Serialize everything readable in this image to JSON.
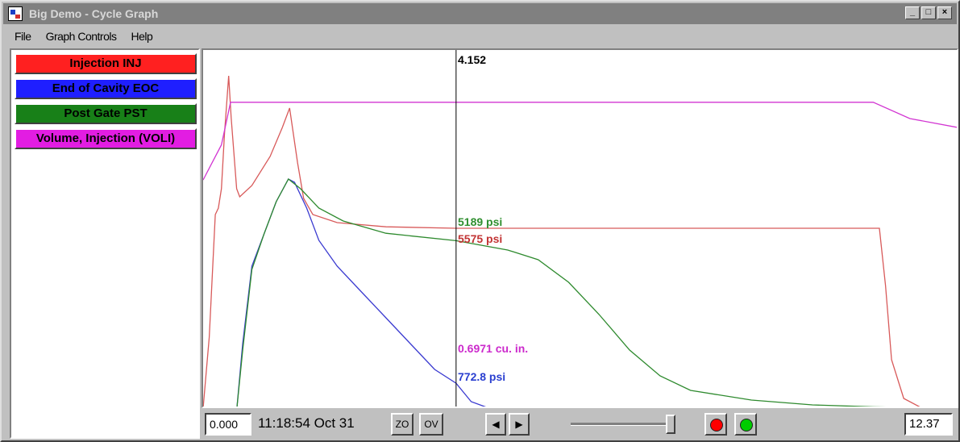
{
  "window": {
    "title": "Big Demo - Cycle Graph",
    "minimize_glyph": "_",
    "maximize_glyph": "□",
    "close_glyph": "×"
  },
  "menu": [
    {
      "label": "File"
    },
    {
      "label": "Graph Controls"
    },
    {
      "label": "Help"
    }
  ],
  "legend": [
    {
      "label": "Injection INJ",
      "color": "#ff2020"
    },
    {
      "label": "End of Cavity EOC",
      "color": "#1f1fff"
    },
    {
      "label": "Post Gate PST",
      "color": "#188018"
    },
    {
      "label": "Volume, Injection (VOLI)",
      "color": "#e21de2"
    }
  ],
  "graph": {
    "cursor_value": "4.152",
    "readouts": {
      "pst": {
        "text": "5189 psi",
        "color": "#2f8f2f"
      },
      "inj": {
        "text": "5575 psi",
        "color": "#c23434"
      },
      "voli": {
        "text": "0.6971 cu. in.",
        "color": "#cc2acc"
      },
      "eoc": {
        "text": "772.8 psi",
        "color": "#2a3fd0"
      }
    }
  },
  "chart_data": {
    "type": "line",
    "x_start": 0,
    "x_end": 12.37,
    "cursor_x": 4.152,
    "series": [
      {
        "name": "Injection INJ",
        "color": "#d85a5a",
        "points": [
          [
            0,
            0
          ],
          [
            0.1,
            2200
          ],
          [
            0.2,
            6000
          ],
          [
            0.25,
            6200
          ],
          [
            0.3,
            6800
          ],
          [
            0.35,
            8500
          ],
          [
            0.42,
            10300
          ],
          [
            0.46,
            9000
          ],
          [
            0.55,
            6800
          ],
          [
            0.6,
            6550
          ],
          [
            0.8,
            6900
          ],
          [
            1.1,
            7800
          ],
          [
            1.3,
            8700
          ],
          [
            1.42,
            9300
          ],
          [
            1.55,
            7600
          ],
          [
            1.65,
            6500
          ],
          [
            1.8,
            6000
          ],
          [
            2.2,
            5750
          ],
          [
            3,
            5620
          ],
          [
            4.152,
            5575
          ],
          [
            6,
            5575
          ],
          [
            8,
            5575
          ],
          [
            10,
            5575
          ],
          [
            11.1,
            5575
          ],
          [
            11.2,
            3800
          ],
          [
            11.3,
            1500
          ],
          [
            11.5,
            300
          ],
          [
            11.8,
            0
          ],
          [
            12.37,
            0
          ]
        ]
      },
      {
        "name": "End of Cavity EOC",
        "color": "#3a3ad0",
        "points": [
          [
            0,
            -2200
          ],
          [
            0.4,
            -2200
          ],
          [
            0.55,
            -1000
          ],
          [
            0.65,
            2000
          ],
          [
            0.8,
            4400
          ],
          [
            1,
            5400
          ],
          [
            1.2,
            6400
          ],
          [
            1.4,
            7100
          ],
          [
            1.5,
            7000
          ],
          [
            1.7,
            6200
          ],
          [
            1.9,
            5200
          ],
          [
            2.2,
            4400
          ],
          [
            2.6,
            3600
          ],
          [
            3,
            2800
          ],
          [
            3.4,
            2000
          ],
          [
            3.8,
            1200
          ],
          [
            4.152,
            772.8
          ],
          [
            4.4,
            200
          ],
          [
            4.8,
            -1800
          ],
          [
            5,
            -2100
          ],
          [
            12.37,
            -2200
          ]
        ]
      },
      {
        "name": "Post Gate PST",
        "color": "#2e8a2e",
        "points": [
          [
            0,
            -2200
          ],
          [
            0.45,
            -2200
          ],
          [
            0.55,
            -1200
          ],
          [
            0.65,
            1800
          ],
          [
            0.8,
            4300
          ],
          [
            1,
            5400
          ],
          [
            1.2,
            6400
          ],
          [
            1.4,
            7100
          ],
          [
            1.6,
            6800
          ],
          [
            1.9,
            6200
          ],
          [
            2.3,
            5800
          ],
          [
            3,
            5420
          ],
          [
            4.152,
            5189
          ],
          [
            5,
            4900
          ],
          [
            5.5,
            4600
          ],
          [
            6,
            3900
          ],
          [
            6.5,
            2900
          ],
          [
            7,
            1800
          ],
          [
            7.5,
            1000
          ],
          [
            8,
            550
          ],
          [
            9,
            250
          ],
          [
            10,
            100
          ],
          [
            11,
            40
          ],
          [
            12.37,
            0
          ]
        ]
      },
      {
        "name": "Volume, Injection (VOLI)",
        "color": "#d235d2",
        "points": [
          [
            0,
            0.52
          ],
          [
            0.3,
            0.6
          ],
          [
            0.45,
            0.6971
          ],
          [
            4.152,
            0.6971
          ],
          [
            8,
            0.6971
          ],
          [
            11,
            0.6971
          ],
          [
            11.6,
            0.66
          ],
          [
            12.37,
            0.64
          ]
        ]
      }
    ]
  },
  "controls": {
    "start_value": "0.000",
    "timestamp": "11:18:54 Oct 31",
    "zo_label": "ZO",
    "ov_label": "OV",
    "prev_glyph": "◀",
    "next_glyph": "▶",
    "end_value": "12.37",
    "slider_level": 0.95,
    "red_color": "#ff0000",
    "green_color": "#00cc00"
  }
}
